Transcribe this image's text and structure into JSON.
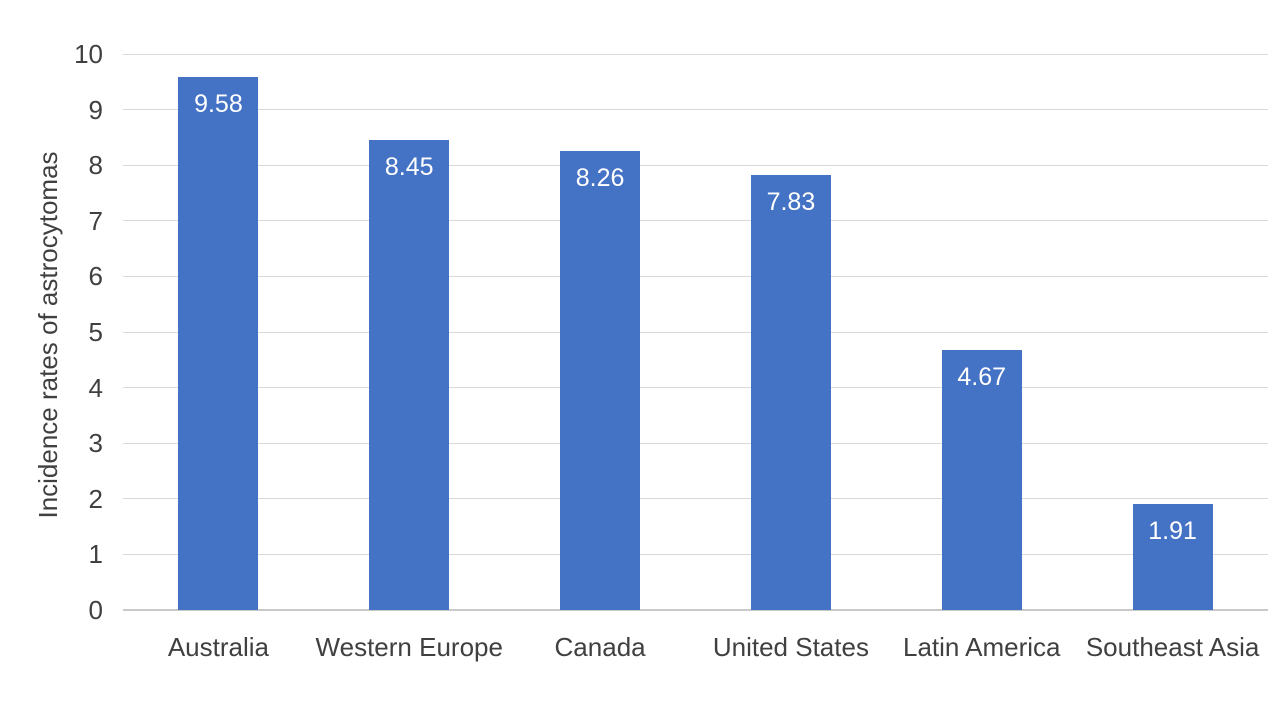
{
  "chart_data": {
    "type": "bar",
    "title": "",
    "categories": [
      "Australia",
      "Western Europe",
      "Canada",
      "United States",
      "Latin America",
      "Southeast Asia"
    ],
    "values": [
      9.58,
      8.45,
      8.26,
      7.83,
      4.67,
      1.91
    ],
    "value_labels": [
      "9.58",
      "8.45",
      "8.26",
      "7.83",
      "4.67",
      "1.91"
    ],
    "xlabel": "",
    "ylabel": "Incidence rates of astrocytomas",
    "ylim": [
      0,
      10
    ],
    "yticks": [
      0,
      1,
      2,
      3,
      4,
      5,
      6,
      7,
      8,
      9,
      10
    ],
    "grid": true,
    "legend_position": "none",
    "bar_color": "#4472C4",
    "data_label_color": "#FFFFFF",
    "axis_text_color": "#404040",
    "gridline_color": "#D9D9D9",
    "axis_line_color": "#C9C9C9",
    "background_color": "#FFFFFF"
  }
}
